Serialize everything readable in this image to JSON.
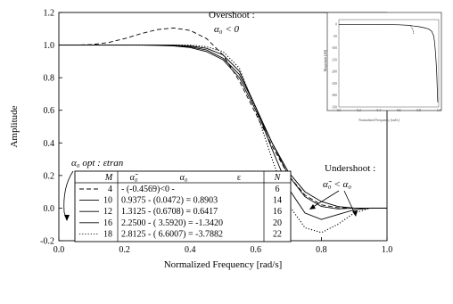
{
  "chart_data": [
    {
      "type": "line",
      "xlabel": "Normalized Frequency [rad/s]",
      "ylabel": "Amplitude",
      "xlim": [
        0.0,
        1.0
      ],
      "ylim": [
        -0.2,
        1.2
      ],
      "x_ticks": [
        "0.0",
        "0.2",
        "0.4",
        "0.6",
        "0.8",
        "1.0"
      ],
      "y_ticks": [
        "-0.2",
        "0.0",
        "0.2",
        "0.4",
        "0.6",
        "0.8",
        "1.0",
        "1.2"
      ],
      "grid": false,
      "series": [
        {
          "name": "4",
          "style": "dashed",
          "x": [
            0,
            0.05,
            0.1,
            0.15,
            0.2,
            0.25,
            0.3,
            0.35,
            0.4,
            0.45,
            0.5,
            0.55,
            0.6,
            0.65,
            0.7,
            0.75,
            0.8,
            0.85,
            0.9,
            0.95,
            1.0
          ],
          "y": [
            1.0,
            1.0,
            1.003,
            1.015,
            1.04,
            1.07,
            1.095,
            1.105,
            1.09,
            1.04,
            0.94,
            0.78,
            0.58,
            0.38,
            0.2,
            0.08,
            0.02,
            0.003,
            0.0,
            0.0,
            0.0
          ]
        },
        {
          "name": "10",
          "style": "solid",
          "x": [
            0,
            0.05,
            0.1,
            0.15,
            0.2,
            0.25,
            0.3,
            0.35,
            0.4,
            0.45,
            0.5,
            0.55,
            0.6,
            0.65,
            0.7,
            0.75,
            0.8,
            0.85,
            0.9,
            0.95,
            1.0
          ],
          "y": [
            1.0,
            1.0,
            1.0,
            1.0,
            1.0,
            1.0,
            0.998,
            0.995,
            0.985,
            0.96,
            0.91,
            0.8,
            0.6,
            0.4,
            0.22,
            0.1,
            0.04,
            0.01,
            0.0,
            0.0,
            0.0
          ]
        },
        {
          "name": "12",
          "style": "solid",
          "x": [
            0,
            0.05,
            0.1,
            0.15,
            0.2,
            0.25,
            0.3,
            0.35,
            0.4,
            0.45,
            0.5,
            0.55,
            0.6,
            0.65,
            0.7,
            0.75,
            0.8,
            0.85,
            0.9,
            0.95,
            1.0
          ],
          "y": [
            1.0,
            1.0,
            1.0,
            1.0,
            1.0,
            1.0,
            1.0,
            0.998,
            0.99,
            0.97,
            0.92,
            0.82,
            0.62,
            0.4,
            0.2,
            0.07,
            0.01,
            -0.005,
            0.0,
            0.0,
            0.0
          ]
        },
        {
          "name": "16",
          "style": "solid",
          "x": [
            0,
            0.05,
            0.1,
            0.15,
            0.2,
            0.25,
            0.3,
            0.35,
            0.4,
            0.45,
            0.5,
            0.55,
            0.6,
            0.65,
            0.7,
            0.75,
            0.8,
            0.85,
            0.9,
            0.95,
            1.0
          ],
          "y": [
            1.0,
            1.0,
            1.0,
            1.0,
            1.0,
            1.0,
            1.0,
            1.0,
            0.995,
            0.98,
            0.94,
            0.84,
            0.62,
            0.36,
            0.12,
            -0.03,
            -0.07,
            -0.04,
            -0.01,
            0.0,
            0.0
          ]
        },
        {
          "name": "18",
          "style": "dotted",
          "x": [
            0,
            0.05,
            0.1,
            0.15,
            0.2,
            0.25,
            0.3,
            0.35,
            0.4,
            0.45,
            0.5,
            0.55,
            0.6,
            0.65,
            0.7,
            0.75,
            0.8,
            0.85,
            0.9,
            0.95,
            1.0
          ],
          "y": [
            1.0,
            1.0,
            1.0,
            1.0,
            1.0,
            1.0,
            1.0,
            1.0,
            1.0,
            0.99,
            0.96,
            0.86,
            0.6,
            0.3,
            0.02,
            -0.12,
            -0.15,
            -0.1,
            -0.03,
            0.0,
            0.0
          ]
        }
      ],
      "annotations": {
        "overshoot_title": "Overshoot :",
        "overshoot_cond": "α₀ < 0",
        "undershoot_title": "Undershoot :",
        "undershoot_cond": "α̃₀ < α₀",
        "alpha_opt": "α₀ opt : εtran"
      },
      "legend": {
        "placement": "bottom-left",
        "headers": [
          "M",
          "α̃₀",
          "α₀",
          "ε",
          "N"
        ],
        "rows": [
          {
            "M": "4",
            "text": "-      (-0.4569)<0      -",
            "N": "6"
          },
          {
            "M": "10",
            "text": "0.9375 - (0.0472) = 0.8903",
            "N": "14"
          },
          {
            "M": "12",
            "text": "1.3125 - (0.6708) = 0.6417",
            "N": "16"
          },
          {
            "M": "16",
            "text": "2.2500 - ( 3.5920) = -1.3420",
            "N": "20"
          },
          {
            "M": "18",
            "text": "2.8125 - ( 6.6007) = -3.7882",
            "N": "22"
          }
        ]
      }
    },
    {
      "type": "line",
      "xlabel": "Normalized Frequency [rad/s]",
      "ylabel": "Magnitude [dB]",
      "xlim": [
        0.0,
        1.0
      ],
      "ylim": [
        -350,
        20
      ],
      "x_ticks": [
        "0.0",
        "0.2",
        "0.4",
        "0.6",
        "0.8",
        "1.0"
      ],
      "y_ticks": [
        "0",
        "-50",
        "-100",
        "-150",
        "-200",
        "-250",
        "-300",
        "-350"
      ],
      "series": [
        {
          "x": [
            0,
            0.2,
            0.4,
            0.6,
            0.7,
            0.75,
            0.8,
            0.85,
            0.9,
            0.93,
            0.95,
            0.96,
            0.97,
            0.98,
            0.985,
            0.99
          ],
          "y": [
            0,
            0,
            0,
            -2,
            -4,
            -7,
            -10,
            -14,
            -20,
            -30,
            -50,
            -80,
            -130,
            -210,
            -270,
            -330
          ]
        },
        {
          "x": [
            0.72,
            0.73,
            0.74,
            0.745,
            0.75
          ],
          "y": [
            -8,
            -14,
            -22,
            -30,
            -42
          ]
        }
      ]
    }
  ]
}
